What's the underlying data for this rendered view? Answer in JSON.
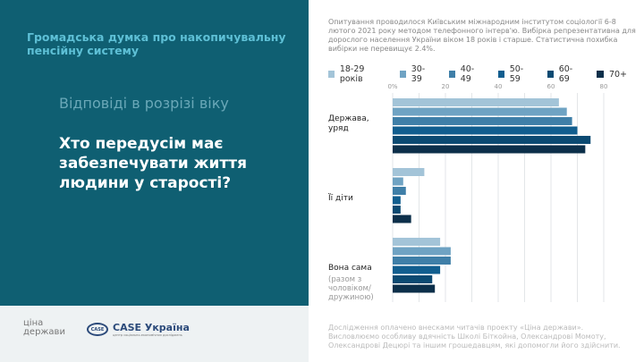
{
  "left": {
    "topic": "Громадська думка про накопичувальну пенсійну систему",
    "subtitle": "Відповіді в розрізі віку",
    "question": "Хто передусім має забезпечувати життя людини у старості?"
  },
  "footer": {
    "logo1": "ціна держави",
    "logo2": "CASE Україна",
    "logo2_oval": "CASE",
    "logo2_tagline": "центр соціально-економічних досліджень"
  },
  "note": "Опитування проводилося Київським міжнародним інститутом соціології 6-8 лютого 2021 року методом телефонного інтерв'ю. Вибірка репрезентативна для дорослого населення України віком 18 років і старше. Статистична похибка вибірки не перевищує 2.4%.",
  "credits": "Дослідження оплачено внесками читачів проекту «Ціна держави». Висловлюємо особливу вдячність Школі Біткойна, Олександрові Момоту, Олександрові Децюрі та іншим грошедавцям, які допомогли його здійснити.",
  "chart_data": {
    "type": "bar",
    "orientation": "horizontal",
    "categories": [
      "Держава, уряд",
      "Її діти",
      "Вона сама"
    ],
    "category_notes": [
      "",
      "",
      "(разом з чоловіком/ дружиною)"
    ],
    "series": [
      {
        "name": "18-29 років",
        "color": "#a3c4d8",
        "values": [
          63,
          12,
          18
        ]
      },
      {
        "name": "30-39",
        "color": "#6fa3c3",
        "values": [
          66,
          4,
          22
        ]
      },
      {
        "name": "40-49",
        "color": "#3f7fa8",
        "values": [
          68,
          5,
          22
        ]
      },
      {
        "name": "50-59",
        "color": "#115e8f",
        "values": [
          70,
          3,
          18
        ]
      },
      {
        "name": "60-69",
        "color": "#0b4a72",
        "values": [
          75,
          3,
          15
        ]
      },
      {
        "name": "70+",
        "color": "#0c2f4a",
        "values": [
          73,
          7,
          16
        ]
      }
    ],
    "xticks": [
      "0%",
      "20",
      "40",
      "60",
      "80"
    ],
    "xlim": [
      0,
      80
    ],
    "grid": true,
    "legend": "top"
  }
}
